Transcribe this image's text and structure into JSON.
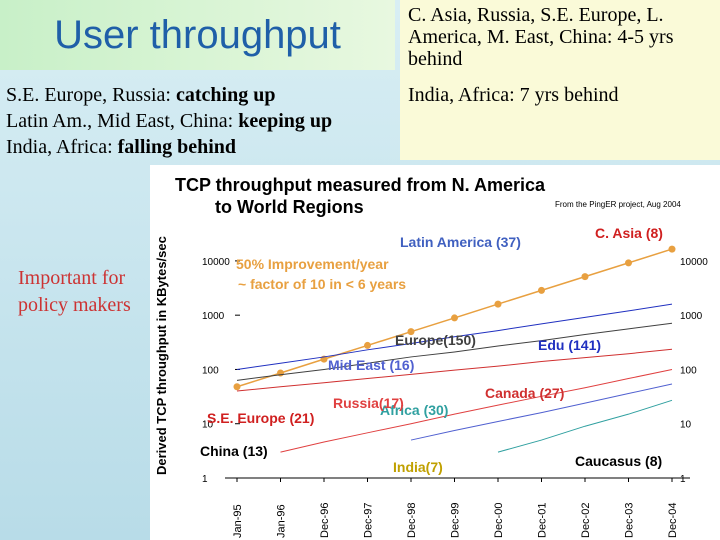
{
  "header": {
    "title": "User throughput"
  },
  "callout": {
    "lines": [
      "C. Asia, Russia, S.E. Europe, L. America, M. East, China:  4-5 yrs behind",
      "India, Africa: 7 yrs behind"
    ]
  },
  "notes": [
    [
      "S.E. Europe, Russia: ",
      "catching up"
    ],
    [
      "Latin Am., Mid East, China: ",
      "keeping up"
    ],
    [
      "India, Africa: ",
      "falling behind"
    ]
  ],
  "side_note": "Important for policy makers",
  "chart_data": {
    "type": "line",
    "title": "TCP throughput measured from N. America to World Regions",
    "source": "From the PingER project, Aug 2004",
    "y_label": "Derived TCP throughput in KBytes/sec",
    "categories": [
      "Jan-95",
      "Jan-96",
      "Dec-96",
      "Dec-97",
      "Dec-98",
      "Dec-99",
      "Dec-00",
      "Dec-01",
      "Dec-02",
      "Dec-03",
      "Dec-04"
    ],
    "log_y": true,
    "ylim": [
      1,
      30000
    ],
    "yticks": [
      1,
      10,
      100,
      1000,
      10000
    ],
    "series": [
      {
        "name": "50% Improvement/year",
        "color": "#e8a040",
        "markers": true,
        "values": [
          48,
          86,
          155,
          277,
          497,
          890,
          1600,
          2860,
          5130,
          9200,
          16500
        ]
      },
      {
        "name": "Edu (141)",
        "color": "#2030c0",
        "values": [
          100,
          130,
          170,
          230,
          300,
          400,
          520,
          690,
          910,
          1200,
          1600
        ]
      },
      {
        "name": "Europe(150)",
        "color": "#404040",
        "values": [
          63,
          80,
          100,
          130,
          170,
          210,
          270,
          340,
          440,
          560,
          710
        ]
      },
      {
        "name": "Canada (27)",
        "color": "#d03030",
        "values": [
          40,
          48,
          57,
          68,
          81,
          97,
          115,
          140,
          165,
          195,
          235
        ]
      },
      {
        "name": "Mid East (16)",
        "color": "#5060d0",
        "values": [
          null,
          null,
          null,
          null,
          5,
          7.5,
          11,
          16,
          24,
          36,
          54
        ]
      },
      {
        "name": "Africa (30)",
        "color": "#30a0a0",
        "values": [
          null,
          null,
          null,
          null,
          null,
          null,
          3,
          5,
          9,
          15,
          27
        ]
      },
      {
        "name": "Russia(17)",
        "color": "#e04040",
        "values": [
          null,
          3,
          4.6,
          6.8,
          10,
          15,
          22,
          32,
          46,
          68,
          100
        ]
      }
    ],
    "annotations": [
      {
        "text": "Latin America (37)",
        "color": "#4060c0"
      },
      {
        "text": "C. Asia (8)",
        "color": "#d02020"
      },
      {
        "text": "~ factor of 10 in < 6 years",
        "color": "#e8a040"
      },
      {
        "text": "S.E.  Europe (21)",
        "color": "#d02020"
      },
      {
        "text": "China (13)",
        "color": "#000000"
      },
      {
        "text": "India(7)",
        "color": "#c0a000"
      },
      {
        "text": "Caucasus (8)",
        "color": "#000000"
      }
    ]
  }
}
